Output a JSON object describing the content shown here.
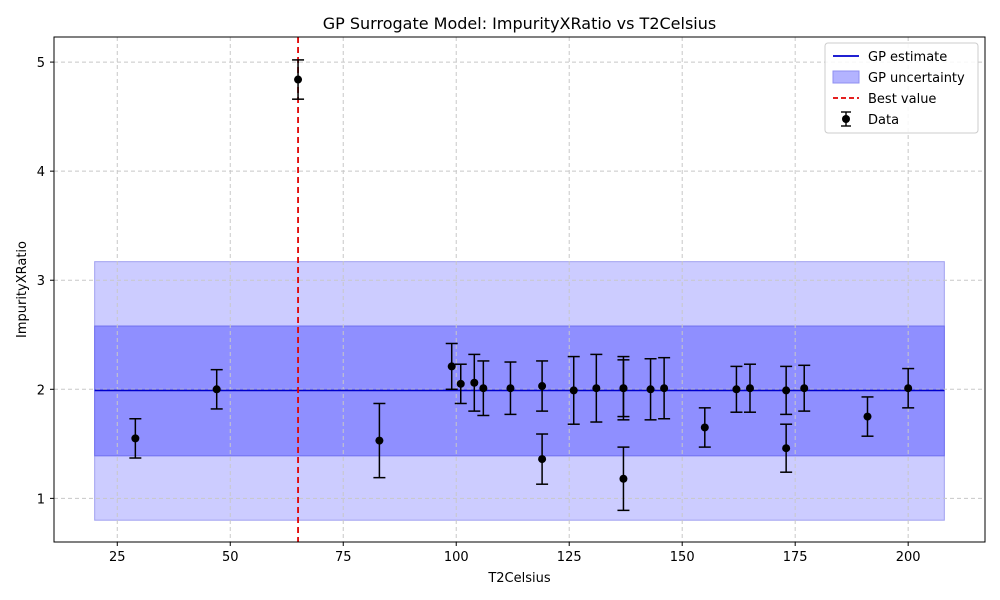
{
  "chart_data": {
    "type": "scatter",
    "title": "GP Surrogate Model: ImpurityXRatio vs T2Celsius",
    "xlabel": "T2Celsius",
    "ylabel": "ImpurityXRatio",
    "xlim": [
      11,
      217
    ],
    "ylim": [
      0.6,
      5.23
    ],
    "xticks": [
      25,
      50,
      75,
      100,
      125,
      150,
      175,
      200
    ],
    "yticks": [
      1,
      2,
      3,
      4,
      5
    ],
    "grid": true,
    "legend_position": "top-right",
    "gp": {
      "x_range": [
        20,
        208
      ],
      "mean": 1.99,
      "band_1sigma": [
        1.39,
        2.58
      ],
      "band_2sigma": [
        0.8,
        3.17
      ]
    },
    "best_value_x": 65,
    "points": [
      {
        "x": 29,
        "y": 1.55,
        "err": 0.18
      },
      {
        "x": 47,
        "y": 2.0,
        "err": 0.18
      },
      {
        "x": 65,
        "y": 4.84,
        "err": 0.18
      },
      {
        "x": 83,
        "y": 1.53,
        "err": 0.34
      },
      {
        "x": 99,
        "y": 2.21,
        "err": 0.21
      },
      {
        "x": 101,
        "y": 2.05,
        "err": 0.18
      },
      {
        "x": 104,
        "y": 2.06,
        "err": 0.26
      },
      {
        "x": 106,
        "y": 2.01,
        "err": 0.25
      },
      {
        "x": 112,
        "y": 2.01,
        "err": 0.24
      },
      {
        "x": 119,
        "y": 2.03,
        "err": 0.23
      },
      {
        "x": 119,
        "y": 1.36,
        "err": 0.23
      },
      {
        "x": 126,
        "y": 1.99,
        "err": 0.31
      },
      {
        "x": 131,
        "y": 2.01,
        "err": 0.31
      },
      {
        "x": 137,
        "y": 2.01,
        "err": 0.29
      },
      {
        "x": 137,
        "y": 2.01,
        "err": 0.26
      },
      {
        "x": 137,
        "y": 1.18,
        "err": 0.29
      },
      {
        "x": 143,
        "y": 2.0,
        "err": 0.28
      },
      {
        "x": 146,
        "y": 2.01,
        "err": 0.28
      },
      {
        "x": 155,
        "y": 1.65,
        "err": 0.18
      },
      {
        "x": 162,
        "y": 2.0,
        "err": 0.21
      },
      {
        "x": 165,
        "y": 2.01,
        "err": 0.22
      },
      {
        "x": 173,
        "y": 1.99,
        "err": 0.22
      },
      {
        "x": 173,
        "y": 1.46,
        "err": 0.22
      },
      {
        "x": 177,
        "y": 2.01,
        "err": 0.21
      },
      {
        "x": 191,
        "y": 1.75,
        "err": 0.18
      },
      {
        "x": 200,
        "y": 2.01,
        "err": 0.18
      }
    ],
    "legend": [
      {
        "label": "GP estimate",
        "kind": "line",
        "color": "#0000cc"
      },
      {
        "label": "GP uncertainty",
        "kind": "patch",
        "color": "#b3b3ff"
      },
      {
        "label": "Best value",
        "kind": "dashed",
        "color": "#e00000"
      },
      {
        "label": "Data",
        "kind": "errorbar",
        "color": "#000000"
      }
    ],
    "colors": {
      "band_2sigma": "#ccccff",
      "band_1sigma": "#8f8fff",
      "gp_line": "#0000cc",
      "best_line": "#e00000",
      "points": "#000000",
      "grid": "#c8c8c8"
    }
  }
}
